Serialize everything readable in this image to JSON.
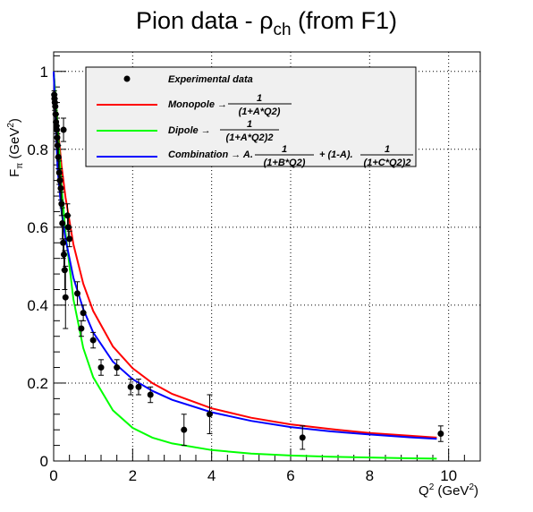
{
  "chart_data": {
    "type": "scatter",
    "title": "Pion data - ρch (from F1)",
    "title_parts": {
      "main": "Pion data - ρ",
      "sub": "ch",
      "tail": " (from F1)"
    },
    "xlabel": "Q2 (GeV2)",
    "xlabel_parts": {
      "a": "Q",
      "sup1": "2",
      "b": " (GeV",
      "sup2": "2",
      "c": ")"
    },
    "ylabel": "Fπ (GeV2)",
    "ylabel_parts": {
      "a": "F",
      "sub": "π",
      "b": " (GeV",
      "sup": "2",
      "c": ")"
    },
    "xlim": [
      0,
      10.8
    ],
    "ylim": [
      0,
      1.05
    ],
    "grid": true,
    "legend_position": "top",
    "x_ticks": [
      0,
      2,
      4,
      6,
      8,
      10
    ],
    "x_tick_labels": [
      "0",
      "2",
      "4",
      "6",
      "8",
      "10"
    ],
    "y_ticks": [
      0,
      0.2,
      0.4,
      0.6,
      0.8,
      1
    ],
    "y_tick_labels": [
      "0",
      "0.2",
      "0.4",
      "0.6",
      "0.8",
      "1"
    ],
    "legend": [
      {
        "kind": "marker",
        "label": "Experimental data"
      },
      {
        "kind": "line",
        "color": "#ff0000",
        "label": "Monopole →",
        "frac_num": "1",
        "frac_den": "(1+A*Q2)"
      },
      {
        "kind": "line",
        "color": "#00ff00",
        "label": "Dipole →",
        "frac_num": "1",
        "frac_den": "(1+A*Q2)2"
      },
      {
        "kind": "line",
        "color": "#0000ff",
        "label": "Combination → A.",
        "frac_num": "1",
        "frac_den": "(1+B*Q2)",
        "label2": "+ (1-A).",
        "frac2_num": "1",
        "frac2_den": "(1+C*Q2)2"
      }
    ],
    "series": [
      {
        "name": "Experimental data",
        "kind": "points",
        "color": "#000000",
        "points": [
          {
            "x": 0.015,
            "y": 0.94,
            "err": 0.01
          },
          {
            "x": 0.02,
            "y": 0.93,
            "err": 0.01
          },
          {
            "x": 0.03,
            "y": 0.92,
            "err": 0.02
          },
          {
            "x": 0.04,
            "y": 0.91,
            "err": 0.02
          },
          {
            "x": 0.05,
            "y": 0.89,
            "err": 0.02
          },
          {
            "x": 0.06,
            "y": 0.87,
            "err": 0.02
          },
          {
            "x": 0.07,
            "y": 0.86,
            "err": 0.03
          },
          {
            "x": 0.08,
            "y": 0.85,
            "err": 0.03
          },
          {
            "x": 0.09,
            "y": 0.83,
            "err": 0.03
          },
          {
            "x": 0.1,
            "y": 0.81,
            "err": 0.03
          },
          {
            "x": 0.12,
            "y": 0.78,
            "err": 0.03
          },
          {
            "x": 0.14,
            "y": 0.74,
            "err": 0.03
          },
          {
            "x": 0.16,
            "y": 0.72,
            "err": 0.03
          },
          {
            "x": 0.18,
            "y": 0.7,
            "err": 0.03
          },
          {
            "x": 0.2,
            "y": 0.66,
            "err": 0.03
          },
          {
            "x": 0.22,
            "y": 0.61,
            "err": 0.04
          },
          {
            "x": 0.24,
            "y": 0.56,
            "err": 0.04
          },
          {
            "x": 0.26,
            "y": 0.53,
            "err": 0.04
          },
          {
            "x": 0.28,
            "y": 0.49,
            "err": 0.05
          },
          {
            "x": 0.3,
            "y": 0.42,
            "err": 0.08
          },
          {
            "x": 0.35,
            "y": 0.63,
            "err": 0.03
          },
          {
            "x": 0.25,
            "y": 0.85,
            "err": 0.03
          },
          {
            "x": 0.37,
            "y": 0.6,
            "err": 0.03
          },
          {
            "x": 0.4,
            "y": 0.57,
            "err": 0.02
          },
          {
            "x": 0.6,
            "y": 0.43,
            "err": 0.03
          },
          {
            "x": 0.7,
            "y": 0.34,
            "err": 0.02
          },
          {
            "x": 0.75,
            "y": 0.38,
            "err": 0.02
          },
          {
            "x": 1.0,
            "y": 0.31,
            "err": 0.02
          },
          {
            "x": 1.2,
            "y": 0.24,
            "err": 0.02
          },
          {
            "x": 1.6,
            "y": 0.24,
            "err": 0.02
          },
          {
            "x": 1.95,
            "y": 0.19,
            "err": 0.02
          },
          {
            "x": 2.15,
            "y": 0.19,
            "err": 0.02
          },
          {
            "x": 2.45,
            "y": 0.17,
            "err": 0.02
          },
          {
            "x": 3.3,
            "y": 0.08,
            "err": 0.04
          },
          {
            "x": 3.95,
            "y": 0.12,
            "err": 0.05
          },
          {
            "x": 6.3,
            "y": 0.06,
            "err": 0.03
          },
          {
            "x": 9.8,
            "y": 0.07,
            "err": 0.02
          }
        ]
      },
      {
        "name": "Monopole",
        "kind": "line",
        "color": "#ff0000",
        "x": [
          0,
          0.1,
          0.2,
          0.3,
          0.5,
          0.75,
          1,
          1.5,
          2,
          2.5,
          3,
          4,
          5,
          6,
          7,
          8,
          9,
          9.7
        ],
        "values": [
          1,
          0.862,
          0.758,
          0.676,
          0.556,
          0.455,
          0.385,
          0.294,
          0.238,
          0.2,
          0.172,
          0.135,
          0.111,
          0.094,
          0.082,
          0.072,
          0.065,
          0.06
        ]
      },
      {
        "name": "Dipole",
        "kind": "line",
        "color": "#00ff00",
        "x": [
          0,
          0.1,
          0.2,
          0.3,
          0.5,
          0.75,
          1,
          1.5,
          2,
          2.5,
          3,
          4,
          5,
          6,
          7,
          8,
          9,
          9.7
        ],
        "values": [
          1,
          0.864,
          0.705,
          0.585,
          0.415,
          0.29,
          0.215,
          0.13,
          0.085,
          0.06,
          0.045,
          0.028,
          0.019,
          0.014,
          0.011,
          0.009,
          0.007,
          0.006
        ]
      },
      {
        "name": "Combination",
        "kind": "line",
        "color": "#0000ff",
        "x": [
          0,
          0.1,
          0.2,
          0.3,
          0.5,
          0.75,
          1,
          1.5,
          2,
          2.5,
          3,
          4,
          5,
          6,
          7,
          8,
          9,
          9.7
        ],
        "values": [
          1,
          0.75,
          0.64,
          0.57,
          0.47,
          0.39,
          0.33,
          0.255,
          0.21,
          0.18,
          0.157,
          0.125,
          0.103,
          0.087,
          0.076,
          0.068,
          0.061,
          0.057
        ]
      }
    ]
  }
}
